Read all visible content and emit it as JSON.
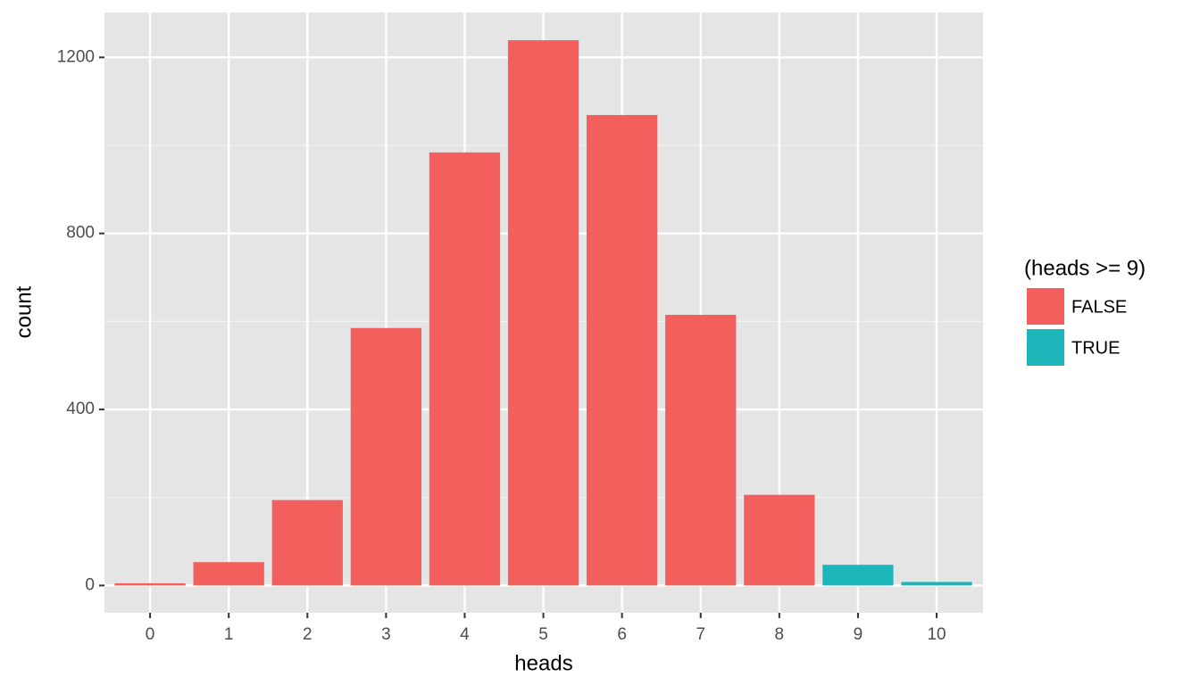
{
  "chart_data": {
    "type": "bar",
    "x_label": "heads",
    "y_label": "count",
    "x": [
      0,
      1,
      2,
      3,
      4,
      5,
      6,
      7,
      8,
      9,
      10
    ],
    "legend_title": "(heads >= 9)",
    "series": [
      {
        "name": "FALSE",
        "color": "#f25f5c",
        "values": [
          5,
          53,
          194,
          585,
          984,
          1239,
          1069,
          615,
          206,
          null,
          null
        ]
      },
      {
        "name": "TRUE",
        "color": "#1bb5ba",
        "values": [
          null,
          null,
          null,
          null,
          null,
          null,
          null,
          null,
          null,
          47,
          8
        ]
      }
    ],
    "bar_width": 0.9,
    "xlim": [
      -0.58,
      10.59
    ],
    "xticks": [
      0,
      1,
      2,
      3,
      4,
      5,
      6,
      7,
      8,
      9,
      10
    ],
    "ylim": [
      -62,
      1302
    ],
    "yticks": [
      0,
      400,
      800,
      1200
    ],
    "yminor": [
      200,
      600,
      1000
    ],
    "grid": true,
    "legend": "right"
  }
}
